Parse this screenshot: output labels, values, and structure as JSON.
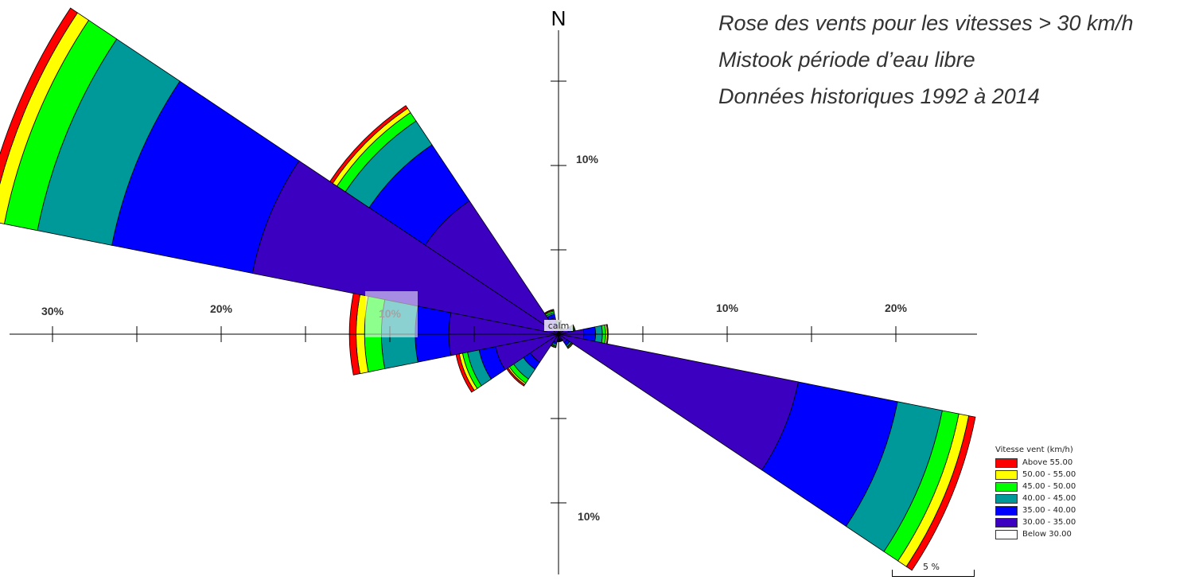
{
  "chart_data": {
    "type": "wind-rose",
    "title_lines": [
      "Rose des vents pour les vitesses > 30 km/h",
      "Mistook période d’eau libre",
      "Données historiques 1992 à 2014"
    ],
    "north_label": "N",
    "calm_label": "calm",
    "radial_unit": "%",
    "radial_tick_labels": [
      "10%",
      "20%",
      "30%"
    ],
    "ring_step": 5,
    "bins": [
      {
        "label": "30.00 - 35.00",
        "color": "#3b00c0"
      },
      {
        "label": "35.00 - 40.00",
        "color": "#0000ff"
      },
      {
        "label": "40.00 - 45.00",
        "color": "#009999"
      },
      {
        "label": "45.00 - 50.00",
        "color": "#00ff00"
      },
      {
        "label": "50.00 - 55.00",
        "color": "#ffff00"
      },
      {
        "label": "Above  55.00",
        "color": "#ff0000"
      }
    ],
    "petals": [
      {
        "direction_deg": 292.5,
        "cumulative": [
          18.5,
          27.0,
          31.5,
          33.5,
          34.3,
          34.8
        ]
      },
      {
        "direction_deg": 315,
        "cumulative": [
          9.5,
          13.5,
          15.2,
          15.8,
          16.1,
          16.3
        ]
      },
      {
        "direction_deg": 270,
        "cumulative": [
          6.5,
          8.5,
          10.5,
          11.5,
          12.0,
          12.4
        ]
      },
      {
        "direction_deg": 247.5,
        "cumulative": [
          3.8,
          4.8,
          5.5,
          5.8,
          6.0,
          6.2
        ]
      },
      {
        "direction_deg": 225,
        "cumulative": [
          2.0,
          2.5,
          3.2,
          3.5,
          3.6,
          3.7
        ]
      },
      {
        "direction_deg": 337.5,
        "cumulative": [
          1.0,
          1.2,
          1.3,
          1.4,
          1.45,
          1.5
        ]
      },
      {
        "direction_deg": 0,
        "cumulative": [
          0.5,
          0.6,
          0.7,
          0.75,
          0.8,
          0.82
        ]
      },
      {
        "direction_deg": 22.5,
        "cumulative": [
          0.3,
          0.35,
          0.4,
          0.42,
          0.44,
          0.45
        ]
      },
      {
        "direction_deg": 45,
        "cumulative": [
          0.3,
          0.35,
          0.4,
          0.42,
          0.44,
          0.45
        ]
      },
      {
        "direction_deg": 67.5,
        "cumulative": [
          0.6,
          0.8,
          0.9,
          0.95,
          1.0,
          1.02
        ]
      },
      {
        "direction_deg": 90,
        "cumulative": [
          1.5,
          2.2,
          2.6,
          2.8,
          2.9,
          2.95
        ]
      },
      {
        "direction_deg": 112.5,
        "cumulative": [
          14.5,
          20.5,
          23.2,
          24.2,
          24.8,
          25.2
        ]
      },
      {
        "direction_deg": 135,
        "cumulative": [
          0.6,
          0.8,
          0.9,
          0.95,
          1.0,
          1.02
        ]
      },
      {
        "direction_deg": 157.5,
        "cumulative": [
          0.3,
          0.35,
          0.4,
          0.42,
          0.44,
          0.45
        ]
      },
      {
        "direction_deg": 180,
        "cumulative": [
          0.3,
          0.35,
          0.4,
          0.42,
          0.44,
          0.45
        ]
      },
      {
        "direction_deg": 202.5,
        "cumulative": [
          0.5,
          0.6,
          0.7,
          0.75,
          0.8,
          0.82
        ]
      }
    ]
  },
  "legend": {
    "title": "Vitesse vent (km/h)",
    "items": [
      {
        "label": "Above  55.00",
        "color": "#ff0000"
      },
      {
        "label": "50.00 - 55.00",
        "color": "#ffff00"
      },
      {
        "label": "45.00 - 50.00",
        "color": "#00ff00"
      },
      {
        "label": "40.00 - 45.00",
        "color": "#009999"
      },
      {
        "label": "35.00 - 40.00",
        "color": "#0000ff"
      },
      {
        "label": "30.00 - 35.00",
        "color": "#3b00c0"
      },
      {
        "label": "Below  30.00",
        "color": "#ffffff"
      }
    ]
  },
  "scale": {
    "label": "5 %"
  }
}
